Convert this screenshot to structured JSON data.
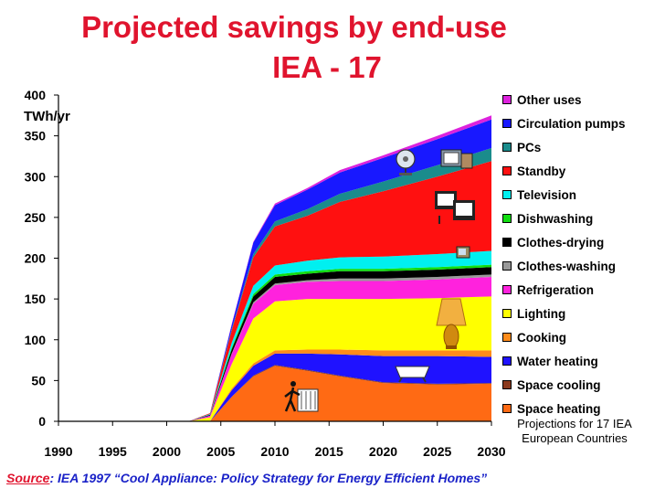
{
  "title_line1": "Projected savings by end-use",
  "title_line2": "IEA - 17",
  "note": "Projections for 17 IEA European Countries",
  "source": {
    "label": "Source",
    "text": ": IEA 1997 “Cool Appliance: Policy Strategy for Energy Efficient Homes”"
  },
  "icons": [
    "fan-icon",
    "monitor-icon",
    "computer-icon",
    "tv-icon",
    "lamp-icon",
    "bathtub-icon",
    "radiator-icon"
  ],
  "chart_data": {
    "type": "area",
    "stacked": true,
    "ylabel": "TWh/yr",
    "xlim": [
      1990,
      2030
    ],
    "ylim": [
      0,
      400
    ],
    "xticks": [
      "1990",
      "1995",
      "2000",
      "2005",
      "2010",
      "2015",
      "2020",
      "2025",
      "2030"
    ],
    "yticks": [
      "0",
      "50",
      "100",
      "150",
      "200",
      "250",
      "300",
      "350",
      "400"
    ],
    "grid": false,
    "legend_position": "right",
    "x": [
      1990,
      2002,
      2004,
      2006,
      2008,
      2010,
      2013,
      2016,
      2020,
      2025,
      2030
    ],
    "series": [
      {
        "name": "Space heating",
        "color": "#ff6a14",
        "values": [
          0,
          0,
          0,
          30,
          55,
          68,
          62,
          55,
          47,
          45,
          46
        ]
      },
      {
        "name": "Space cooling",
        "color": "#8b3a1e",
        "values": [
          0,
          0,
          0,
          0,
          1,
          1,
          1,
          1,
          1,
          1,
          1
        ]
      },
      {
        "name": "Water heating",
        "color": "#1f12ff",
        "values": [
          0,
          0,
          0,
          8,
          12,
          14,
          20,
          26,
          32,
          34,
          32
        ]
      },
      {
        "name": "Cooking",
        "color": "#ff8c1a",
        "values": [
          0,
          0,
          0,
          2,
          3,
          4,
          5,
          6,
          7,
          7,
          8
        ]
      },
      {
        "name": "Lighting",
        "color": "#ffff00",
        "values": [
          0,
          0,
          5,
          30,
          55,
          60,
          62,
          62,
          63,
          64,
          66
        ]
      },
      {
        "name": "Refrigeration",
        "color": "#ff22dd",
        "values": [
          0,
          0,
          2,
          12,
          18,
          20,
          21,
          22,
          22,
          23,
          24
        ]
      },
      {
        "name": "Clothes-washing",
        "color": "#999999",
        "values": [
          0,
          0,
          0,
          1,
          2,
          2,
          2,
          3,
          3,
          3,
          3
        ]
      },
      {
        "name": "Clothes-drying",
        "color": "#000000",
        "values": [
          0,
          0,
          1,
          5,
          7,
          8,
          8,
          9,
          9,
          9,
          9
        ]
      },
      {
        "name": "Dishwashing",
        "color": "#11dd11",
        "values": [
          0,
          0,
          0,
          2,
          3,
          3,
          3,
          3,
          3,
          3,
          3
        ]
      },
      {
        "name": "Television",
        "color": "#00f0f0",
        "values": [
          0,
          0,
          1,
          6,
          10,
          11,
          13,
          14,
          15,
          16,
          17
        ]
      },
      {
        "name": "Standby",
        "color": "#ff1010",
        "values": [
          0,
          0,
          1,
          15,
          35,
          48,
          55,
          68,
          80,
          95,
          110
        ]
      },
      {
        "name": "PCs",
        "color": "#1a8c8c",
        "values": [
          0,
          0,
          0,
          2,
          4,
          6,
          8,
          10,
          12,
          14,
          16
        ]
      },
      {
        "name": "Circulation pumps",
        "color": "#1818ff",
        "values": [
          0,
          0,
          0,
          5,
          14,
          20,
          24,
          26,
          29,
          32,
          35
        ]
      },
      {
        "name": "Other uses",
        "color": "#dd22dd",
        "values": [
          0,
          0,
          0,
          1,
          1,
          2,
          2,
          3,
          3,
          4,
          5
        ]
      }
    ]
  }
}
